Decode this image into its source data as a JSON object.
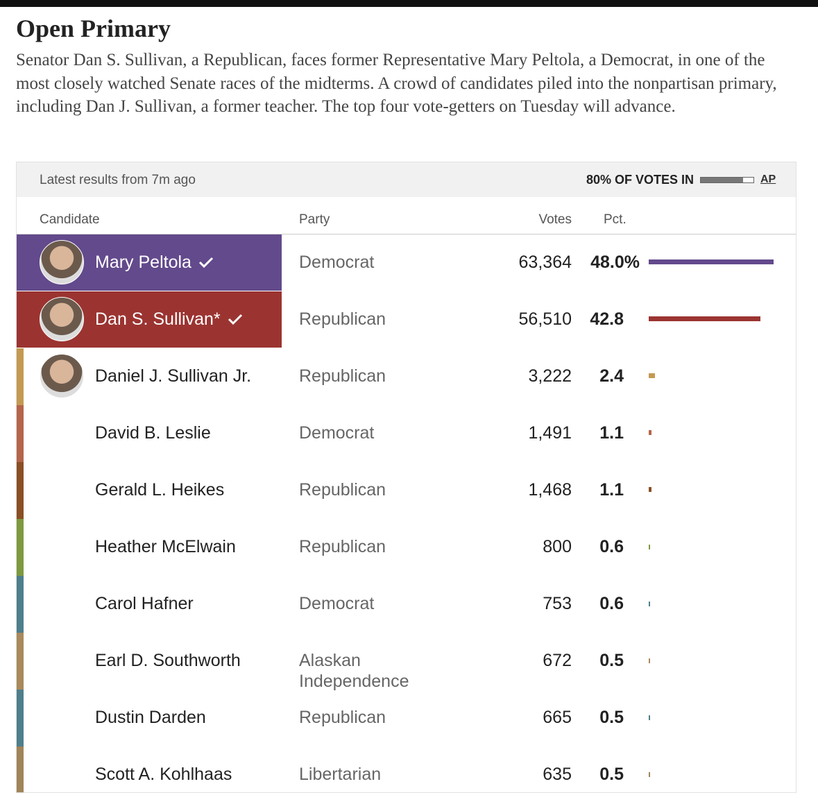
{
  "header": {
    "title": "Open Primary",
    "description": "Senator Dan S. Sullivan, a Republican, faces former Representative Mary Peltola, a Democrat, in one of the most closely watched Senate races of the midterms. A crowd of candidates piled into the nonpartisan primary, including Dan J. Sullivan, a former teacher. The top four vote-getters on Tuesday will advance."
  },
  "results": {
    "updated": "Latest results from 7m ago",
    "reporting": "80% OF VOTES IN",
    "source": "AP",
    "columns": [
      "Candidate",
      "Party",
      "Votes",
      "Pct."
    ],
    "rows": [
      {
        "name": "Mary Peltola",
        "party": "Democrat",
        "votes": "63,364",
        "pct": "48.0%",
        "color": "#634a8c",
        "highlight": true,
        "winner": true,
        "photo": true
      },
      {
        "name": "Dan S. Sullivan*",
        "party": "Republican",
        "votes": "56,510",
        "pct": "42.8",
        "color": "#9b3431",
        "highlight": true,
        "winner": true,
        "photo": true
      },
      {
        "name": "Daniel J. Sullivan Jr.",
        "party": "Republican",
        "votes": "3,222",
        "pct": "2.4",
        "color": "#c49a52",
        "photo": true
      },
      {
        "name": "David B. Leslie",
        "party": "Democrat",
        "votes": "1,491",
        "pct": "1.1",
        "color": "#b5654a"
      },
      {
        "name": "Gerald L. Heikes",
        "party": "Republican",
        "votes": "1,468",
        "pct": "1.1",
        "color": "#8a4f24"
      },
      {
        "name": "Heather McElwain",
        "party": "Republican",
        "votes": "800",
        "pct": "0.6",
        "color": "#7d9a3e"
      },
      {
        "name": "Carol Hafner",
        "party": "Democrat",
        "votes": "753",
        "pct": "0.6",
        "color": "#4f7f8c"
      },
      {
        "name": "Earl D. Southworth",
        "party": "Alaskan Independence",
        "votes": "672",
        "pct": "0.5",
        "color": "#a88a5c"
      },
      {
        "name": "Dustin Darden",
        "party": "Republican",
        "votes": "665",
        "pct": "0.5",
        "color": "#4f7f8c"
      },
      {
        "name": "Scott A. Kohlhaas",
        "party": "Libertarian",
        "votes": "635",
        "pct": "0.5",
        "color": "#a0845a"
      }
    ]
  }
}
